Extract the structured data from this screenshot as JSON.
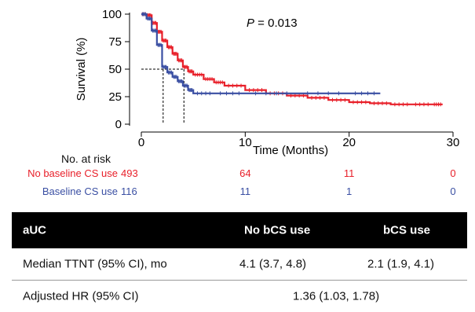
{
  "chart_data": {
    "type": "line",
    "title": "",
    "annotation": "P = 0.013",
    "xlabel": "Time (Months)",
    "ylabel": "Survival (%)",
    "xlim": [
      0,
      30
    ],
    "ylim": [
      0,
      100
    ],
    "xticks": [
      0,
      10,
      20,
      30
    ],
    "yticks": [
      0,
      25,
      50,
      75,
      100
    ],
    "grid": false,
    "median_lines": [
      {
        "series": "Baseline CS use",
        "x": 2.1,
        "y": 50
      },
      {
        "series": "No baseline CS use",
        "x": 4.1,
        "y": 50
      }
    ],
    "series": [
      {
        "name": "No baseline CS use",
        "color": "#e8202a",
        "x": [
          0,
          0.5,
          1,
          1.5,
          2,
          2.5,
          3,
          3.5,
          4,
          4.5,
          5,
          6,
          7,
          8,
          10,
          12,
          14,
          16,
          18,
          20,
          22,
          24,
          26,
          28,
          29
        ],
        "y": [
          100,
          99,
          92,
          84,
          76,
          70,
          64,
          58,
          52,
          48,
          45,
          41,
          38,
          35,
          31,
          28,
          26,
          24,
          22,
          20,
          19,
          18,
          18,
          18,
          18
        ]
      },
      {
        "name": "Baseline CS use",
        "color": "#3a4fa3",
        "x": [
          0,
          0.5,
          1,
          1.5,
          2,
          2.5,
          3,
          3.5,
          4,
          4.5,
          5,
          7,
          10,
          15,
          20,
          23
        ],
        "y": [
          100,
          96,
          85,
          72,
          52,
          47,
          43,
          39,
          35,
          31,
          28,
          28,
          28,
          28,
          28,
          28
        ]
      }
    ]
  },
  "risk_table": {
    "header": "No. at risk",
    "rows": [
      {
        "label": "No baseline CS use",
        "color": "#e8202a",
        "values": [
          "493",
          "64",
          "11",
          "0"
        ]
      },
      {
        "label": "Baseline CS use",
        "color": "#3a4fa3",
        "values": [
          "116",
          "11",
          "1",
          "0"
        ]
      }
    ]
  },
  "summary_table": {
    "columns": [
      "aUC",
      "No bCS use",
      "bCS use"
    ],
    "median_row": {
      "label": "Median TTNT (95% CI), mo",
      "no_bcs": "4.1 (3.7, 4.8)",
      "bcs": "2.1 (1.9, 4.1)"
    },
    "hr_row": {
      "label": "Adjusted HR (95% CI)",
      "value": "1.36 (1.03, 1.78)"
    }
  }
}
